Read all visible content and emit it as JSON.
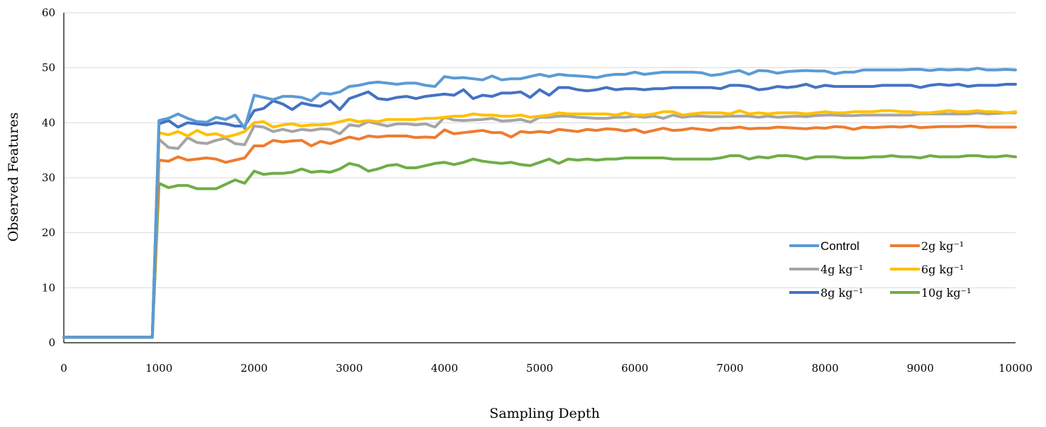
{
  "chart_data": {
    "type": "line",
    "title": "",
    "xlabel": "Sampling Depth",
    "ylabel": "Observed Features",
    "xlim": [
      0,
      10000
    ],
    "ylim": [
      0,
      60
    ],
    "xticks": [
      "0",
      "1000",
      "2000",
      "3000",
      "4000",
      "5000",
      "6000",
      "7000",
      "8000",
      "9000",
      "10000"
    ],
    "yticks": [
      "0",
      "10",
      "20",
      "30",
      "40",
      "50",
      "60"
    ],
    "grid": "horizontal",
    "legend_position": "bottom-right",
    "colors": {
      "Control": "#5B9BD5",
      "2g": "#ED7D31",
      "4g": "#A5A5A5",
      "6g": "#FFC000",
      "8g": "#4472C4",
      "10g": "#70AD47"
    },
    "x": [
      0,
      1000,
      1100,
      1200,
      1300,
      1400,
      1500,
      1600,
      1700,
      1800,
      1900,
      2000,
      2100,
      2200,
      2300,
      2400,
      2500,
      2600,
      2700,
      2800,
      2900,
      3000,
      3100,
      3200,
      3300,
      3400,
      3500,
      3600,
      3700,
      3800,
      3900,
      4000,
      4100,
      4200,
      4300,
      4400,
      4500,
      4600,
      4700,
      4800,
      4900,
      5000,
      5100,
      5200,
      5300,
      5400,
      5500,
      5600,
      5700,
      5800,
      5900,
      6000,
      6100,
      6200,
      6300,
      6400,
      6500,
      6600,
      6700,
      6800,
      6900,
      7000,
      7100,
      7200,
      7300,
      7400,
      7500,
      7600,
      7700,
      7800,
      7900,
      8000,
      8100,
      8200,
      8300,
      8400,
      8500,
      8600,
      8700,
      8800,
      8900,
      9000,
      9100,
      9200,
      9300,
      9400,
      9500,
      9600,
      9700,
      9800,
      9900,
      10000
    ],
    "series": [
      {
        "name": "Control",
        "color": "#5B9BD5",
        "values": [
          1,
          40.4,
          40.8,
          41.6,
          40.8,
          40.2,
          40.1,
          41.0,
          40.6,
          41.4,
          39.0,
          45.0,
          44.6,
          44.2,
          44.8,
          44.8,
          44.6,
          44.0,
          45.4,
          45.2,
          45.6,
          46.6,
          46.8,
          47.2,
          47.4,
          47.2,
          47.0,
          47.2,
          47.2,
          46.8,
          46.6,
          48.4,
          48.1,
          48.2,
          48.0,
          47.8,
          48.5,
          47.8,
          48.0,
          48.0,
          48.4,
          48.8,
          48.4,
          48.8,
          48.6,
          48.5,
          48.4,
          48.2,
          48.6,
          48.8,
          48.8,
          49.2,
          48.8,
          49.0,
          49.2,
          49.2,
          49.2,
          49.2,
          49.1,
          48.6,
          48.8,
          49.2,
          49.5,
          48.8,
          49.5,
          49.4,
          49.0,
          49.3,
          49.4,
          49.5,
          49.4,
          49.4,
          48.9,
          49.2,
          49.2,
          49.6,
          49.6,
          49.6,
          49.6,
          49.6,
          49.7,
          49.7,
          49.5,
          49.7,
          49.6,
          49.7,
          49.6,
          49.9,
          49.6,
          49.6,
          49.7,
          49.6
        ]
      },
      {
        "name": "2g",
        "color": "#ED7D31",
        "values": [
          1,
          33.2,
          33.0,
          33.8,
          33.2,
          33.4,
          33.6,
          33.4,
          32.8,
          33.2,
          33.6,
          35.8,
          35.8,
          36.8,
          36.5,
          36.7,
          36.8,
          35.8,
          36.6,
          36.2,
          36.8,
          37.4,
          37.0,
          37.6,
          37.4,
          37.6,
          37.6,
          37.6,
          37.3,
          37.4,
          37.3,
          38.7,
          38.0,
          38.2,
          38.4,
          38.6,
          38.2,
          38.2,
          37.4,
          38.4,
          38.2,
          38.4,
          38.2,
          38.8,
          38.6,
          38.4,
          38.8,
          38.6,
          38.9,
          38.8,
          38.5,
          38.8,
          38.2,
          38.6,
          39.0,
          38.6,
          38.7,
          39.0,
          38.8,
          38.6,
          39.0,
          39.0,
          39.2,
          38.9,
          39.0,
          39.0,
          39.2,
          39.1,
          39.0,
          38.9,
          39.1,
          39.0,
          39.3,
          39.2,
          38.8,
          39.2,
          39.1,
          39.2,
          39.3,
          39.2,
          39.4,
          39.1,
          39.2,
          39.3,
          39.3,
          39.3,
          39.4,
          39.4,
          39.2,
          39.2,
          39.2,
          39.2
        ]
      },
      {
        "name": "4g",
        "color": "#A5A5A5",
        "values": [
          1,
          37.0,
          35.5,
          35.3,
          37.3,
          36.4,
          36.2,
          36.8,
          37.2,
          36.2,
          36.0,
          39.4,
          39.2,
          38.4,
          38.8,
          38.4,
          38.8,
          38.6,
          38.9,
          38.8,
          38.0,
          39.6,
          39.4,
          40.2,
          39.8,
          39.4,
          39.8,
          39.8,
          39.6,
          39.8,
          39.2,
          41.0,
          40.5,
          40.4,
          40.5,
          40.6,
          40.8,
          40.3,
          40.4,
          40.6,
          40.1,
          41.0,
          41.0,
          41.2,
          41.2,
          41.0,
          40.9,
          40.8,
          40.8,
          41.0,
          41.0,
          41.2,
          41.0,
          41.2,
          40.8,
          41.4,
          41.0,
          41.2,
          41.2,
          41.1,
          41.1,
          41.2,
          41.2,
          41.2,
          41.0,
          41.2,
          41.0,
          41.1,
          41.2,
          41.1,
          41.3,
          41.4,
          41.4,
          41.3,
          41.3,
          41.4,
          41.4,
          41.4,
          41.4,
          41.4,
          41.4,
          41.6,
          41.6,
          41.6,
          41.6,
          41.6,
          41.6,
          41.8,
          41.6,
          41.7,
          41.8,
          41.8
        ]
      },
      {
        "name": "6g",
        "color": "#FFC000",
        "values": [
          1,
          38.2,
          37.8,
          38.4,
          37.6,
          38.6,
          37.8,
          38.0,
          37.4,
          37.8,
          38.4,
          40.0,
          40.2,
          39.2,
          39.6,
          39.8,
          39.4,
          39.6,
          39.6,
          39.8,
          40.2,
          40.6,
          40.2,
          40.4,
          40.2,
          40.6,
          40.6,
          40.6,
          40.6,
          40.8,
          40.8,
          41.0,
          41.2,
          41.2,
          41.6,
          41.4,
          41.4,
          41.2,
          41.2,
          41.4,
          41.0,
          41.2,
          41.4,
          41.8,
          41.6,
          41.6,
          41.6,
          41.6,
          41.6,
          41.4,
          41.8,
          41.4,
          41.4,
          41.6,
          42.0,
          42.0,
          41.4,
          41.6,
          41.8,
          41.8,
          41.8,
          41.6,
          42.2,
          41.6,
          41.8,
          41.6,
          41.8,
          41.8,
          41.8,
          41.6,
          41.8,
          42.0,
          41.8,
          41.8,
          42.0,
          42.0,
          42.0,
          42.2,
          42.2,
          42.0,
          42.0,
          41.8,
          41.8,
          42.0,
          42.2,
          42.0,
          42.0,
          42.2,
          42.0,
          42.0,
          41.8,
          42.0
        ]
      },
      {
        "name": "8g",
        "color": "#4472C4",
        "values": [
          1,
          39.8,
          40.4,
          39.2,
          40.0,
          39.8,
          39.6,
          40.0,
          39.8,
          39.4,
          39.4,
          42.2,
          42.6,
          44.0,
          43.4,
          42.4,
          43.6,
          43.2,
          43.0,
          44.0,
          42.4,
          44.4,
          45.0,
          45.6,
          44.4,
          44.2,
          44.6,
          44.8,
          44.4,
          44.8,
          45.0,
          45.2,
          45.0,
          46.0,
          44.4,
          45.0,
          44.8,
          45.4,
          45.4,
          45.6,
          44.6,
          46.0,
          45.0,
          46.4,
          46.4,
          46.0,
          45.8,
          46.0,
          46.4,
          46.0,
          46.2,
          46.2,
          46.0,
          46.2,
          46.2,
          46.4,
          46.4,
          46.4,
          46.4,
          46.4,
          46.2,
          46.8,
          46.8,
          46.6,
          46.0,
          46.2,
          46.6,
          46.4,
          46.6,
          47.0,
          46.4,
          46.8,
          46.6,
          46.6,
          46.6,
          46.6,
          46.6,
          46.8,
          46.8,
          46.8,
          46.8,
          46.4,
          46.8,
          47.0,
          46.8,
          47.0,
          46.6,
          46.8,
          46.8,
          46.8,
          47.0,
          47.0
        ]
      },
      {
        "name": "10g",
        "color": "#70AD47",
        "values": [
          1,
          29.0,
          28.2,
          28.6,
          28.6,
          28.0,
          28.0,
          28.0,
          28.8,
          29.6,
          29.0,
          31.2,
          30.6,
          30.8,
          30.8,
          31.0,
          31.6,
          31.0,
          31.2,
          31.0,
          31.6,
          32.6,
          32.2,
          31.2,
          31.6,
          32.2,
          32.4,
          31.8,
          31.8,
          32.2,
          32.6,
          32.8,
          32.4,
          32.8,
          33.4,
          33.0,
          32.8,
          32.6,
          32.8,
          32.4,
          32.2,
          32.8,
          33.4,
          32.6,
          33.4,
          33.2,
          33.4,
          33.2,
          33.4,
          33.4,
          33.6,
          33.6,
          33.6,
          33.6,
          33.6,
          33.4,
          33.4,
          33.4,
          33.4,
          33.4,
          33.6,
          34.0,
          34.0,
          33.4,
          33.8,
          33.6,
          34.0,
          34.0,
          33.8,
          33.4,
          33.8,
          33.8,
          33.8,
          33.6,
          33.6,
          33.6,
          33.8,
          33.8,
          34.0,
          33.8,
          33.8,
          33.6,
          34.0,
          33.8,
          33.8,
          33.8,
          34.0,
          34.0,
          33.8,
          33.8,
          34.0,
          33.8
        ]
      }
    ]
  },
  "legend": {
    "entries": [
      {
        "key": "Control",
        "label": "Control"
      },
      {
        "key": "2g",
        "label": "2g kg⁻¹"
      },
      {
        "key": "4g",
        "label": "4g kg⁻¹"
      },
      {
        "key": "6g",
        "label": "6g kg⁻¹"
      },
      {
        "key": "8g",
        "label": "8g kg⁻¹"
      },
      {
        "key": "10g",
        "label": "10g kg⁻¹"
      }
    ]
  }
}
